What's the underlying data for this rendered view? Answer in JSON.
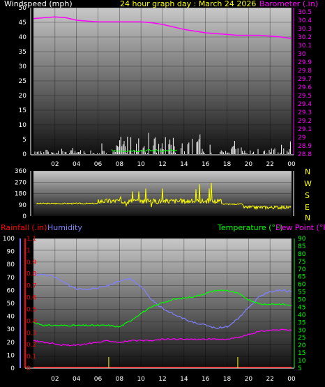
{
  "header": {
    "title": "24 hour graph day : March 24 2026",
    "wind_label": "Windspeed (mph)",
    "baro_label": "Barometer (.in)"
  },
  "compass": [
    "N",
    "W",
    "S",
    "E",
    "N"
  ],
  "lower_header": {
    "rain_label": "Rainfall (.in)",
    "humidity_label": "Humidity",
    "temp_label": "Temperature (°F)",
    "dew_label": "Dew Point (°F)"
  },
  "colors": {
    "title": "#ffff00",
    "wind": "#ffffff",
    "baro": "#ff00ff",
    "dir": "#ffff00",
    "rain": "#ff0000",
    "humidity": "#8080ff",
    "temp": "#00ff00",
    "dew": "#ff00ff",
    "compass": "#ffff00"
  },
  "chart_data": [
    {
      "type": "line",
      "name": "wind-baro",
      "x_ticks": [
        "02",
        "04",
        "06",
        "08",
        "10",
        "12",
        "14",
        "16",
        "18",
        "20",
        "22",
        "00"
      ],
      "y_left": {
        "label": "Windspeed (mph)",
        "lim": [
          0,
          50
        ],
        "ticks": [
          0,
          5,
          10,
          15,
          20,
          25,
          30,
          35,
          40,
          45,
          50
        ]
      },
      "y_right": {
        "label": "Barometer (.in)",
        "lim": [
          28.8,
          30.55
        ],
        "ticks": [
          "28.8",
          "28.9",
          "29",
          "29.1",
          "29.2",
          "29.3",
          "29.4",
          "29.5",
          "29.6",
          "29.7",
          "29.8",
          "29.9",
          "30",
          "30.1",
          "30.2",
          "30.3",
          "30.4",
          "30.5"
        ]
      },
      "series": [
        {
          "name": "Barometer (.in)",
          "axis": "right",
          "x": [
            0,
            1,
            2,
            3,
            4,
            5,
            6,
            7,
            8,
            9,
            10,
            11,
            12,
            13,
            14,
            15,
            16,
            17,
            18,
            19,
            20,
            21,
            22,
            23,
            24
          ],
          "y": [
            30.42,
            30.43,
            30.44,
            30.43,
            30.4,
            30.39,
            30.38,
            30.38,
            30.38,
            30.38,
            30.38,
            30.37,
            30.35,
            30.32,
            30.29,
            30.27,
            30.25,
            30.24,
            30.23,
            30.22,
            30.22,
            30.22,
            30.21,
            30.2,
            30.18
          ]
        }
      ]
    },
    {
      "type": "line",
      "name": "wind-direction",
      "y": {
        "lim": [
          0,
          360
        ],
        "ticks": [
          0,
          90,
          180,
          270,
          360
        ]
      }
    },
    {
      "type": "line",
      "name": "rain-humidity-temp",
      "x_ticks": [
        "02",
        "04",
        "06",
        "08",
        "10",
        "12",
        "14",
        "16",
        "18",
        "20",
        "22",
        "00"
      ],
      "y_humidity": {
        "label": "Humidity",
        "lim": [
          0,
          100
        ],
        "ticks": [
          0,
          10,
          20,
          30,
          40,
          50,
          60,
          70,
          80,
          90,
          100
        ]
      },
      "y_rain": {
        "label": "Rainfall (.in)",
        "lim": [
          0,
          1.1
        ],
        "ticks": [
          "0",
          "0.1",
          "0.2",
          "0.3",
          "0.4",
          "0.5",
          "0.6",
          "0.7",
          "0.8",
          "0.9",
          "1",
          "1.1"
        ]
      },
      "y_temp": {
        "label": "Temperature (°F)",
        "lim": [
          5,
          90
        ],
        "ticks": [
          5,
          10,
          15,
          20,
          25,
          30,
          35,
          40,
          45,
          50,
          55,
          60,
          65,
          70,
          75,
          80,
          85,
          90
        ]
      },
      "series": [
        {
          "name": "Humidity",
          "axis": "humidity",
          "x": [
            0,
            1,
            2,
            3,
            4,
            5,
            6,
            7,
            8,
            9,
            10,
            11,
            12,
            13,
            14,
            15,
            16,
            17,
            18,
            19,
            20,
            21,
            22,
            23,
            24
          ],
          "y": [
            72,
            72,
            70,
            65,
            61,
            61,
            62,
            64,
            67,
            69,
            63,
            53,
            46,
            42,
            38,
            35,
            33,
            31,
            32,
            38,
            47,
            55,
            59,
            60,
            59
          ]
        },
        {
          "name": "Temperature (°F)",
          "axis": "temp",
          "x": [
            0,
            1,
            2,
            3,
            4,
            5,
            6,
            7,
            8,
            9,
            10,
            11,
            12,
            13,
            14,
            15,
            16,
            17,
            18,
            19,
            20,
            21,
            22,
            23,
            24
          ],
          "y": [
            35,
            33,
            33,
            33,
            33,
            33,
            33,
            33,
            32,
            36,
            41,
            45,
            48,
            50,
            51,
            52,
            54,
            56,
            56,
            54,
            50,
            47,
            47,
            47,
            46
          ]
        },
        {
          "name": "Dew Point (°F)",
          "axis": "temp",
          "x": [
            0,
            1,
            2,
            3,
            4,
            5,
            6,
            7,
            8,
            9,
            10,
            11,
            12,
            13,
            14,
            15,
            16,
            17,
            18,
            19,
            20,
            21,
            22,
            23,
            24
          ],
          "y": [
            23,
            22,
            21,
            20,
            20,
            21,
            22,
            23,
            22,
            23,
            23,
            23,
            24,
            24,
            24,
            24,
            24,
            24,
            24,
            25,
            27,
            29,
            30,
            30,
            30
          ]
        }
      ]
    }
  ]
}
